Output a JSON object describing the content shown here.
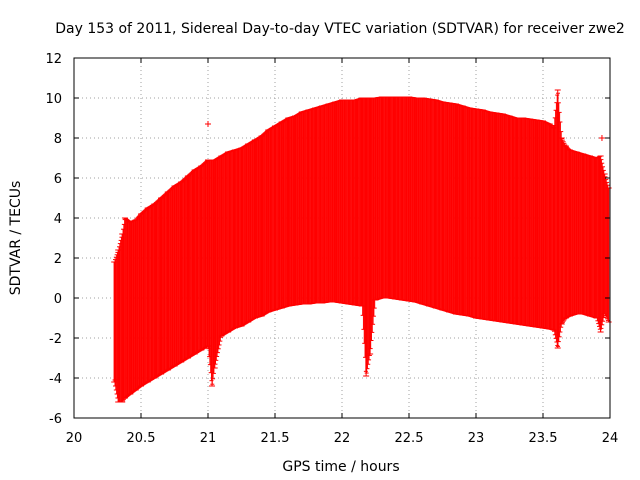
{
  "chart_data": {
    "type": "scatter",
    "style": "error-bars",
    "title": "Day 153 of 2011, Sidereal Day-to-day VTEC variation (SDTVAR) for receiver zwe2",
    "xlabel": "GPS time / hours",
    "ylabel": "SDTVAR / TECUs",
    "xlim": [
      20,
      24
    ],
    "ylim": [
      -6,
      12
    ],
    "xticks": [
      20,
      20.5,
      21,
      21.5,
      22,
      22.5,
      23,
      23.5,
      24
    ],
    "xtick_labels": [
      "20",
      "20.5",
      "21",
      "21.5",
      "22",
      "22.5",
      "23",
      "23.5",
      "24"
    ],
    "yticks": [
      -6,
      -4,
      -2,
      0,
      2,
      4,
      6,
      8,
      10,
      12
    ],
    "ytick_labels": [
      "-6",
      "-4",
      "-2",
      "0",
      "2",
      "4",
      "6",
      "8",
      "10",
      "12"
    ],
    "grid": true,
    "grid_style": "dotted",
    "legend": "none",
    "series_color": "#ff0000",
    "envelope": {
      "description": "Error-bar envelope per time sample: [x, lower, upper] in TECU",
      "points": [
        [
          20.3,
          -4.2,
          1.8
        ],
        [
          20.33,
          -5.2,
          2.4
        ],
        [
          20.36,
          -5.2,
          3.2
        ],
        [
          20.38,
          -5.0,
          4.0
        ],
        [
          20.42,
          -4.8,
          3.8
        ],
        [
          20.46,
          -4.6,
          3.9
        ],
        [
          20.5,
          -4.4,
          4.2
        ],
        [
          20.55,
          -4.2,
          4.5
        ],
        [
          20.6,
          -4.0,
          4.7
        ],
        [
          20.65,
          -3.8,
          5.0
        ],
        [
          20.7,
          -3.6,
          5.3
        ],
        [
          20.75,
          -3.4,
          5.6
        ],
        [
          20.8,
          -3.2,
          5.8
        ],
        [
          20.85,
          -3.0,
          6.1
        ],
        [
          20.9,
          -2.8,
          6.4
        ],
        [
          20.95,
          -2.6,
          6.6
        ],
        [
          21.0,
          -2.4,
          6.9
        ],
        [
          21.03,
          -4.4,
          6.9
        ],
        [
          21.05,
          -3.5,
          6.9
        ],
        [
          21.1,
          -1.9,
          7.1
        ],
        [
          21.15,
          -1.7,
          7.3
        ],
        [
          21.2,
          -1.5,
          7.4
        ],
        [
          21.25,
          -1.4,
          7.5
        ],
        [
          21.3,
          -1.2,
          7.7
        ],
        [
          21.35,
          -1.0,
          7.9
        ],
        [
          21.4,
          -0.9,
          8.1
        ],
        [
          21.45,
          -0.7,
          8.4
        ],
        [
          21.5,
          -0.6,
          8.6
        ],
        [
          21.55,
          -0.5,
          8.8
        ],
        [
          21.6,
          -0.4,
          9.0
        ],
        [
          21.65,
          -0.35,
          9.1
        ],
        [
          21.7,
          -0.3,
          9.3
        ],
        [
          21.75,
          -0.3,
          9.4
        ],
        [
          21.8,
          -0.25,
          9.5
        ],
        [
          21.85,
          -0.25,
          9.6
        ],
        [
          21.9,
          -0.2,
          9.7
        ],
        [
          21.95,
          -0.2,
          9.8
        ],
        [
          22.0,
          -0.25,
          9.9
        ],
        [
          22.05,
          -0.3,
          9.9
        ],
        [
          22.1,
          -0.35,
          9.9
        ],
        [
          22.15,
          -0.4,
          10.0
        ],
        [
          22.18,
          -3.9,
          10.0
        ],
        [
          22.21,
          -2.8,
          10.0
        ],
        [
          22.25,
          -0.1,
          10.0
        ],
        [
          22.3,
          0.0,
          10.05
        ],
        [
          22.35,
          0.0,
          10.05
        ],
        [
          22.4,
          -0.05,
          10.05
        ],
        [
          22.45,
          -0.1,
          10.05
        ],
        [
          22.5,
          -0.15,
          10.05
        ],
        [
          22.55,
          -0.2,
          10.0
        ],
        [
          22.6,
          -0.3,
          10.0
        ],
        [
          22.65,
          -0.4,
          9.95
        ],
        [
          22.7,
          -0.5,
          9.9
        ],
        [
          22.75,
          -0.6,
          9.8
        ],
        [
          22.8,
          -0.7,
          9.75
        ],
        [
          22.85,
          -0.8,
          9.7
        ],
        [
          22.9,
          -0.85,
          9.6
        ],
        [
          22.95,
          -0.9,
          9.5
        ],
        [
          23.0,
          -1.0,
          9.45
        ],
        [
          23.05,
          -1.05,
          9.4
        ],
        [
          23.1,
          -1.1,
          9.3
        ],
        [
          23.15,
          -1.15,
          9.25
        ],
        [
          23.2,
          -1.2,
          9.2
        ],
        [
          23.25,
          -1.25,
          9.1
        ],
        [
          23.3,
          -1.3,
          9.0
        ],
        [
          23.35,
          -1.35,
          9.0
        ],
        [
          23.4,
          -1.4,
          8.95
        ],
        [
          23.45,
          -1.45,
          8.9
        ],
        [
          23.5,
          -1.5,
          8.85
        ],
        [
          23.55,
          -1.55,
          8.7
        ],
        [
          23.58,
          -1.6,
          8.5
        ],
        [
          23.61,
          -2.5,
          10.4
        ],
        [
          23.64,
          -1.3,
          8.0
        ],
        [
          23.67,
          -1.0,
          7.6
        ],
        [
          23.7,
          -0.9,
          7.4
        ],
        [
          23.75,
          -0.8,
          7.3
        ],
        [
          23.8,
          -0.8,
          7.2
        ],
        [
          23.85,
          -0.9,
          7.1
        ],
        [
          23.9,
          -1.0,
          7.0
        ],
        [
          23.93,
          -1.7,
          7.1
        ],
        [
          23.96,
          -0.8,
          6.2
        ],
        [
          23.99,
          -1.2,
          5.5
        ]
      ]
    },
    "outliers": [
      [
        21.0,
        8.7
      ],
      [
        23.94,
        8.0
      ],
      [
        20.31,
        -4.1
      ]
    ]
  }
}
